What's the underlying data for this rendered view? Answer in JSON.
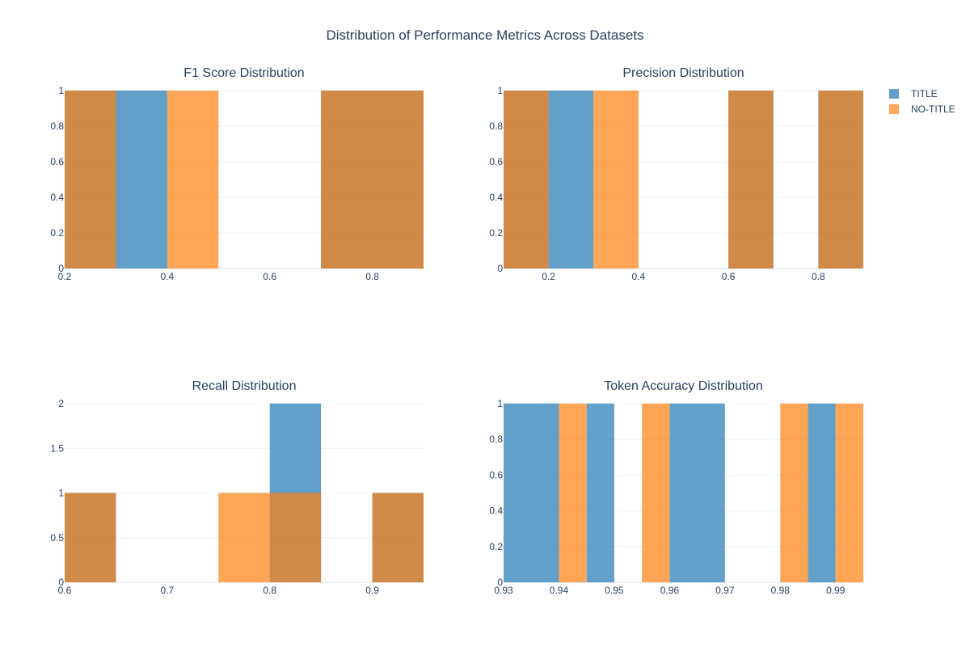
{
  "title": "Distribution of Performance Metrics Across Datasets",
  "colors": {
    "title_series": "#1f77b4",
    "no_title_series": "#ff7f0e",
    "grid": "#ebf0f8",
    "axis_text": "#2a3f5f"
  },
  "legend": [
    {
      "name": "TITLE",
      "color": "#1f77b4"
    },
    {
      "name": "NO-TITLE",
      "color": "#ff7f0e"
    }
  ],
  "chart_data": [
    {
      "type": "histogram",
      "title": "F1 Score Distribution",
      "xlim": [
        0.2,
        0.9
      ],
      "ylim": [
        0,
        1
      ],
      "xticks": [
        0.2,
        0.4,
        0.6,
        0.8
      ],
      "xtick_labels": [
        "0.2",
        "0.4",
        "0.6",
        "0.8"
      ],
      "yticks": [
        0,
        0.2,
        0.4,
        0.6,
        0.8,
        1
      ],
      "ytick_labels": [
        "0",
        "0.2",
        "0.4",
        "0.6",
        "0.8",
        "1"
      ],
      "series": [
        {
          "name": "TITLE",
          "bins": [
            [
              0.2,
              0.3,
              1
            ],
            [
              0.3,
              0.4,
              1
            ],
            [
              0.7,
              0.9,
              1
            ]
          ]
        },
        {
          "name": "NO-TITLE",
          "bins": [
            [
              0.2,
              0.3,
              1
            ],
            [
              0.4,
              0.5,
              1
            ],
            [
              0.7,
              0.9,
              1
            ]
          ]
        }
      ]
    },
    {
      "type": "histogram",
      "title": "Precision Distribution",
      "xlim": [
        0.1,
        0.9
      ],
      "ylim": [
        0,
        1
      ],
      "xticks": [
        0.2,
        0.4,
        0.6,
        0.8
      ],
      "xtick_labels": [
        "0.2",
        "0.4",
        "0.6",
        "0.8"
      ],
      "yticks": [
        0,
        0.2,
        0.4,
        0.6,
        0.8,
        1
      ],
      "ytick_labels": [
        "0",
        "0.2",
        "0.4",
        "0.6",
        "0.8",
        "1"
      ],
      "series": [
        {
          "name": "TITLE",
          "bins": [
            [
              0.1,
              0.2,
              1
            ],
            [
              0.2,
              0.3,
              1
            ],
            [
              0.6,
              0.7,
              1
            ],
            [
              0.8,
              0.9,
              1
            ]
          ]
        },
        {
          "name": "NO-TITLE",
          "bins": [
            [
              0.1,
              0.2,
              1
            ],
            [
              0.3,
              0.4,
              1
            ],
            [
              0.6,
              0.7,
              1
            ],
            [
              0.8,
              0.9,
              1
            ]
          ]
        }
      ]
    },
    {
      "type": "histogram",
      "title": "Recall Distribution",
      "xlim": [
        0.6,
        0.95
      ],
      "ylim": [
        0,
        2
      ],
      "xticks": [
        0.6,
        0.7,
        0.8,
        0.9
      ],
      "xtick_labels": [
        "0.6",
        "0.7",
        "0.8",
        "0.9"
      ],
      "yticks": [
        0,
        0.5,
        1,
        1.5,
        2
      ],
      "ytick_labels": [
        "0",
        "0.5",
        "1",
        "1.5",
        "2"
      ],
      "series": [
        {
          "name": "TITLE",
          "bins": [
            [
              0.6,
              0.65,
              1
            ],
            [
              0.8,
              0.85,
              2
            ],
            [
              0.9,
              0.95,
              1
            ]
          ]
        },
        {
          "name": "NO-TITLE",
          "bins": [
            [
              0.6,
              0.65,
              1
            ],
            [
              0.75,
              0.8,
              1
            ],
            [
              0.8,
              0.85,
              1
            ],
            [
              0.9,
              0.95,
              1
            ]
          ]
        }
      ]
    },
    {
      "type": "histogram",
      "title": "Token Accuracy Distribution",
      "xlim": [
        0.93,
        0.995
      ],
      "ylim": [
        0,
        1
      ],
      "xticks": [
        0.93,
        0.94,
        0.95,
        0.96,
        0.97,
        0.98,
        0.99
      ],
      "xtick_labels": [
        "0.93",
        "0.94",
        "0.95",
        "0.96",
        "0.97",
        "0.98",
        "0.99"
      ],
      "yticks": [
        0,
        0.2,
        0.4,
        0.6,
        0.8,
        1
      ],
      "ytick_labels": [
        "0",
        "0.2",
        "0.4",
        "0.6",
        "0.8",
        "1"
      ],
      "series": [
        {
          "name": "TITLE",
          "bins": [
            [
              0.93,
              0.94,
              1
            ],
            [
              0.945,
              0.95,
              1
            ],
            [
              0.96,
              0.97,
              1
            ],
            [
              0.985,
              0.99,
              1
            ]
          ]
        },
        {
          "name": "NO-TITLE",
          "bins": [
            [
              0.94,
              0.945,
              1
            ],
            [
              0.955,
              0.96,
              1
            ],
            [
              0.98,
              0.985,
              1
            ],
            [
              0.99,
              0.995,
              1
            ]
          ]
        }
      ]
    }
  ]
}
